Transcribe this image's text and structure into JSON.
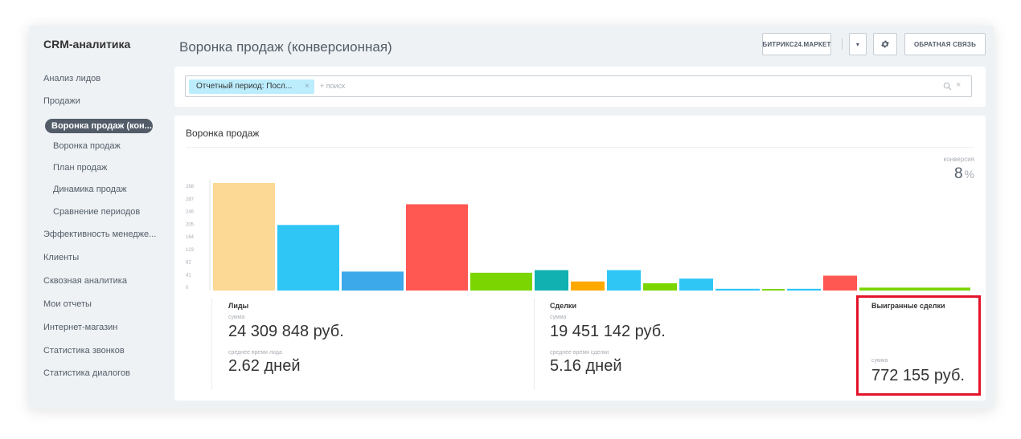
{
  "sidebar": {
    "title": "CRM-аналитика",
    "items": [
      {
        "label": "Анализ лидов"
      },
      {
        "label": "Продажи"
      },
      {
        "label": "Воронка продаж (кон..."
      },
      {
        "label": "Воронка продаж"
      },
      {
        "label": "План продаж"
      },
      {
        "label": "Динамика продаж"
      },
      {
        "label": "Сравнение периодов"
      },
      {
        "label": "Эффективность менедже..."
      },
      {
        "label": "Клиенты"
      },
      {
        "label": "Сквозная аналитика"
      },
      {
        "label": "Мои отчеты"
      },
      {
        "label": "Интернет-магазин"
      },
      {
        "label": "Статистика звонков"
      },
      {
        "label": "Статистика диалогов"
      }
    ]
  },
  "header": {
    "title": "Воронка продаж (конверсионная)",
    "market_label": "БИТРИКС24.МАРКЕТ",
    "caret_label": "▾",
    "gear_icon": "gear-icon",
    "feedback_label": "ОБРАТНАЯ СВЯЗЬ"
  },
  "search": {
    "filter_tag": "Отчетный период: Посл...",
    "filter_remove": "×",
    "placeholder": "+ поиск",
    "clear": "×"
  },
  "card": {
    "title": "Воронка продаж",
    "conversion_label": "конверсия",
    "conversion_value": "8",
    "conversion_unit": "%"
  },
  "stats": {
    "leads": {
      "title": "Лиды",
      "sum_label": "сумма",
      "sum_value": "24 309 848 руб.",
      "time_label": "среднее время лида",
      "time_value": "2.62 дней"
    },
    "deals": {
      "title": "Сделки",
      "sum_label": "сумма",
      "sum_value": "19 451 142 руб.",
      "time_label": "среднее время сделки",
      "time_value": "5.16 дней"
    },
    "won": {
      "title": "Выигранные сделки",
      "sum_label": "сумма",
      "sum_value": "772 155 руб."
    }
  },
  "chart_data": {
    "type": "bar",
    "title": "",
    "xlabel": "",
    "ylabel": "",
    "ylim": [
      0,
      369
    ],
    "yticks": [
      "288",
      "287",
      "246",
      "205",
      "164",
      "123",
      "82",
      "41",
      "0"
    ],
    "bars": [
      {
        "value": 369,
        "color": "#fcd994"
      },
      {
        "value": 225,
        "color": "#2fc6f6"
      },
      {
        "value": 65,
        "color": "#3ba9ea"
      },
      {
        "value": 296,
        "color": "#ff5752"
      },
      {
        "value": 61,
        "color": "#7bd500"
      },
      {
        "value": 70,
        "color": "#12b1b1"
      },
      {
        "value": 31,
        "color": "#ffa900"
      },
      {
        "value": 70,
        "color": "#2fc6f6"
      },
      {
        "value": 25,
        "color": "#7bd500"
      },
      {
        "value": 41,
        "color": "#2fc6f6"
      },
      {
        "value": 6,
        "color": "#2fc6f6"
      },
      {
        "value": 5,
        "color": "#7bd500"
      },
      {
        "value": 6,
        "color": "#2fc6f6"
      },
      {
        "value": 51,
        "color": "#ff5752"
      },
      {
        "value": 10,
        "color": "#7bd500"
      }
    ]
  }
}
